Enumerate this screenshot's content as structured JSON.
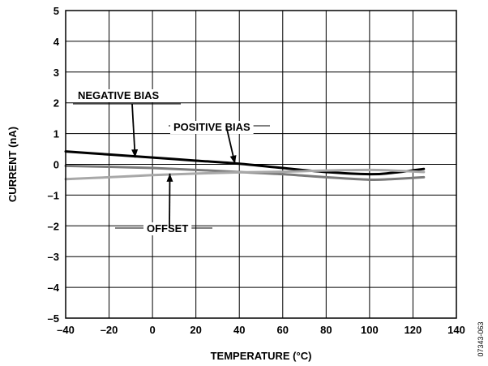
{
  "chart_data": {
    "type": "line",
    "xlabel": "TEMPERATURE (°C)",
    "ylabel": "CURRENT (nA)",
    "xlim": [
      -40,
      140
    ],
    "ylim": [
      -5,
      5
    ],
    "x_ticks": [
      -40,
      -20,
      0,
      20,
      40,
      60,
      80,
      100,
      120,
      140
    ],
    "y_ticks": [
      5,
      4,
      3,
      2,
      1,
      0,
      -1,
      -2,
      -3,
      -4,
      -5
    ],
    "x_tick_labels": [
      "–40",
      "–20",
      "0",
      "20",
      "40",
      "60",
      "80",
      "100",
      "120",
      "140"
    ],
    "y_tick_labels": [
      "5",
      "4",
      "3",
      "2",
      "1",
      "0",
      "–1",
      "–2",
      "–3",
      "–4",
      "–5"
    ],
    "grid": true,
    "series": [
      {
        "name": "NEGATIVE BIAS",
        "color": "#000000",
        "x": [
          -40,
          -20,
          0,
          20,
          40,
          60,
          80,
          100,
          110,
          125
        ],
        "y": [
          0.42,
          0.32,
          0.22,
          0.12,
          0.02,
          -0.12,
          -0.25,
          -0.32,
          -0.28,
          -0.15
        ]
      },
      {
        "name": "POSITIVE BIAS",
        "color": "#7a7a7a",
        "x": [
          -40,
          -20,
          0,
          20,
          40,
          60,
          80,
          100,
          110,
          125
        ],
        "y": [
          -0.05,
          -0.08,
          -0.12,
          -0.18,
          -0.25,
          -0.32,
          -0.42,
          -0.5,
          -0.48,
          -0.42
        ]
      },
      {
        "name": "OFFSET",
        "color": "#a8a8a8",
        "x": [
          -40,
          -20,
          0,
          20,
          40,
          60,
          80,
          100,
          110,
          125
        ],
        "y": [
          -0.48,
          -0.42,
          -0.35,
          -0.3,
          -0.26,
          -0.24,
          -0.2,
          -0.18,
          -0.2,
          -0.25
        ]
      }
    ],
    "annotations": [
      {
        "text": "NEGATIVE BIAS",
        "arrow_to": [
          -8,
          0.22
        ]
      },
      {
        "text": "POSITIVE BIAS",
        "arrow_to": [
          38,
          0.02
        ]
      },
      {
        "text": "OFFSET",
        "arrow_to": [
          8,
          -0.3
        ]
      }
    ],
    "figure_id": "07343-063"
  }
}
